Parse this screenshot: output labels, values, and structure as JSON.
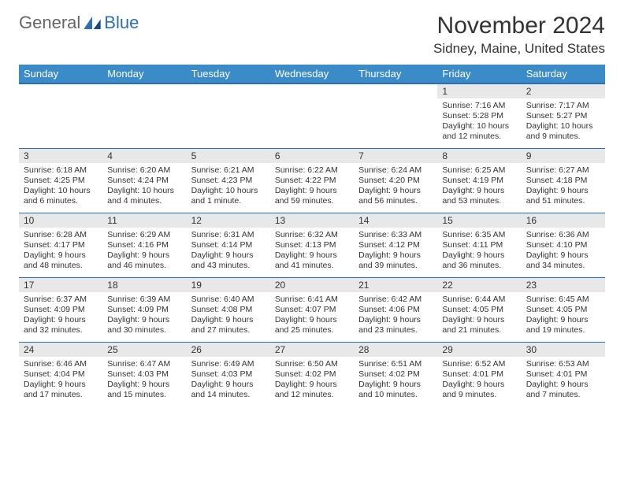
{
  "logo": {
    "text1": "General",
    "text2": "Blue"
  },
  "title": "November 2024",
  "location": "Sidney, Maine, United States",
  "day_header_bg": "#3b8bc9",
  "day_header_fg": "#ffffff",
  "cell_border_color": "#2c6fb5",
  "daynum_bg": "#e8e8e8",
  "columns": [
    "Sunday",
    "Monday",
    "Tuesday",
    "Wednesday",
    "Thursday",
    "Friday",
    "Saturday"
  ],
  "weeks": [
    [
      {
        "n": "",
        "sr": "",
        "ss": "",
        "dl": ""
      },
      {
        "n": "",
        "sr": "",
        "ss": "",
        "dl": ""
      },
      {
        "n": "",
        "sr": "",
        "ss": "",
        "dl": ""
      },
      {
        "n": "",
        "sr": "",
        "ss": "",
        "dl": ""
      },
      {
        "n": "",
        "sr": "",
        "ss": "",
        "dl": ""
      },
      {
        "n": "1",
        "sr": "Sunrise: 7:16 AM",
        "ss": "Sunset: 5:28 PM",
        "dl": "Daylight: 10 hours and 12 minutes."
      },
      {
        "n": "2",
        "sr": "Sunrise: 7:17 AM",
        "ss": "Sunset: 5:27 PM",
        "dl": "Daylight: 10 hours and 9 minutes."
      }
    ],
    [
      {
        "n": "3",
        "sr": "Sunrise: 6:18 AM",
        "ss": "Sunset: 4:25 PM",
        "dl": "Daylight: 10 hours and 6 minutes."
      },
      {
        "n": "4",
        "sr": "Sunrise: 6:20 AM",
        "ss": "Sunset: 4:24 PM",
        "dl": "Daylight: 10 hours and 4 minutes."
      },
      {
        "n": "5",
        "sr": "Sunrise: 6:21 AM",
        "ss": "Sunset: 4:23 PM",
        "dl": "Daylight: 10 hours and 1 minute."
      },
      {
        "n": "6",
        "sr": "Sunrise: 6:22 AM",
        "ss": "Sunset: 4:22 PM",
        "dl": "Daylight: 9 hours and 59 minutes."
      },
      {
        "n": "7",
        "sr": "Sunrise: 6:24 AM",
        "ss": "Sunset: 4:20 PM",
        "dl": "Daylight: 9 hours and 56 minutes."
      },
      {
        "n": "8",
        "sr": "Sunrise: 6:25 AM",
        "ss": "Sunset: 4:19 PM",
        "dl": "Daylight: 9 hours and 53 minutes."
      },
      {
        "n": "9",
        "sr": "Sunrise: 6:27 AM",
        "ss": "Sunset: 4:18 PM",
        "dl": "Daylight: 9 hours and 51 minutes."
      }
    ],
    [
      {
        "n": "10",
        "sr": "Sunrise: 6:28 AM",
        "ss": "Sunset: 4:17 PM",
        "dl": "Daylight: 9 hours and 48 minutes."
      },
      {
        "n": "11",
        "sr": "Sunrise: 6:29 AM",
        "ss": "Sunset: 4:16 PM",
        "dl": "Daylight: 9 hours and 46 minutes."
      },
      {
        "n": "12",
        "sr": "Sunrise: 6:31 AM",
        "ss": "Sunset: 4:14 PM",
        "dl": "Daylight: 9 hours and 43 minutes."
      },
      {
        "n": "13",
        "sr": "Sunrise: 6:32 AM",
        "ss": "Sunset: 4:13 PM",
        "dl": "Daylight: 9 hours and 41 minutes."
      },
      {
        "n": "14",
        "sr": "Sunrise: 6:33 AM",
        "ss": "Sunset: 4:12 PM",
        "dl": "Daylight: 9 hours and 39 minutes."
      },
      {
        "n": "15",
        "sr": "Sunrise: 6:35 AM",
        "ss": "Sunset: 4:11 PM",
        "dl": "Daylight: 9 hours and 36 minutes."
      },
      {
        "n": "16",
        "sr": "Sunrise: 6:36 AM",
        "ss": "Sunset: 4:10 PM",
        "dl": "Daylight: 9 hours and 34 minutes."
      }
    ],
    [
      {
        "n": "17",
        "sr": "Sunrise: 6:37 AM",
        "ss": "Sunset: 4:09 PM",
        "dl": "Daylight: 9 hours and 32 minutes."
      },
      {
        "n": "18",
        "sr": "Sunrise: 6:39 AM",
        "ss": "Sunset: 4:09 PM",
        "dl": "Daylight: 9 hours and 30 minutes."
      },
      {
        "n": "19",
        "sr": "Sunrise: 6:40 AM",
        "ss": "Sunset: 4:08 PM",
        "dl": "Daylight: 9 hours and 27 minutes."
      },
      {
        "n": "20",
        "sr": "Sunrise: 6:41 AM",
        "ss": "Sunset: 4:07 PM",
        "dl": "Daylight: 9 hours and 25 minutes."
      },
      {
        "n": "21",
        "sr": "Sunrise: 6:42 AM",
        "ss": "Sunset: 4:06 PM",
        "dl": "Daylight: 9 hours and 23 minutes."
      },
      {
        "n": "22",
        "sr": "Sunrise: 6:44 AM",
        "ss": "Sunset: 4:05 PM",
        "dl": "Daylight: 9 hours and 21 minutes."
      },
      {
        "n": "23",
        "sr": "Sunrise: 6:45 AM",
        "ss": "Sunset: 4:05 PM",
        "dl": "Daylight: 9 hours and 19 minutes."
      }
    ],
    [
      {
        "n": "24",
        "sr": "Sunrise: 6:46 AM",
        "ss": "Sunset: 4:04 PM",
        "dl": "Daylight: 9 hours and 17 minutes."
      },
      {
        "n": "25",
        "sr": "Sunrise: 6:47 AM",
        "ss": "Sunset: 4:03 PM",
        "dl": "Daylight: 9 hours and 15 minutes."
      },
      {
        "n": "26",
        "sr": "Sunrise: 6:49 AM",
        "ss": "Sunset: 4:03 PM",
        "dl": "Daylight: 9 hours and 14 minutes."
      },
      {
        "n": "27",
        "sr": "Sunrise: 6:50 AM",
        "ss": "Sunset: 4:02 PM",
        "dl": "Daylight: 9 hours and 12 minutes."
      },
      {
        "n": "28",
        "sr": "Sunrise: 6:51 AM",
        "ss": "Sunset: 4:02 PM",
        "dl": "Daylight: 9 hours and 10 minutes."
      },
      {
        "n": "29",
        "sr": "Sunrise: 6:52 AM",
        "ss": "Sunset: 4:01 PM",
        "dl": "Daylight: 9 hours and 9 minutes."
      },
      {
        "n": "30",
        "sr": "Sunrise: 6:53 AM",
        "ss": "Sunset: 4:01 PM",
        "dl": "Daylight: 9 hours and 7 minutes."
      }
    ]
  ]
}
